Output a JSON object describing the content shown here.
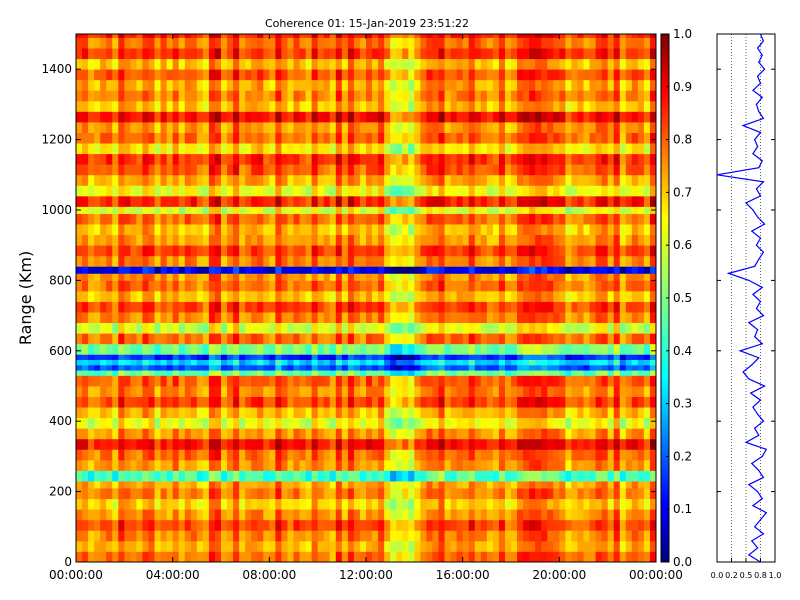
{
  "chart_data": [
    {
      "type": "heatmap",
      "title": "Coherence 01: 15-Jan-2019 23:51:22",
      "xlabel": "",
      "ylabel": "Range (Km)",
      "x_ticks": [
        "00:00:00",
        "04:00:00",
        "08:00:00",
        "12:00:00",
        "16:00:00",
        "20:00:00",
        "00:00:00"
      ],
      "y_ticks": [
        "0",
        "200",
        "400",
        "600",
        "800",
        "1000",
        "1200",
        "1400"
      ],
      "y_tick_values": [
        0,
        200,
        400,
        600,
        800,
        1000,
        1200,
        1400
      ],
      "ylim": [
        0,
        1500
      ],
      "xlim_hours": [
        0,
        24
      ],
      "colormap": "jet",
      "value_range": [
        0.0,
        1.0
      ],
      "row_profile": {
        "range_km": [
          0,
          30,
          60,
          90,
          120,
          150,
          180,
          210,
          230,
          260,
          290,
          320,
          350,
          380,
          410,
          440,
          470,
          500,
          530,
          545,
          560,
          575,
          590,
          620,
          650,
          680,
          710,
          740,
          770,
          800,
          820,
          840,
          870,
          900,
          930,
          960,
          990,
          1010,
          1040,
          1070,
          1100,
          1130,
          1160,
          1190,
          1220,
          1250,
          1280,
          1310,
          1340,
          1370,
          1400,
          1430,
          1460,
          1490
        ],
        "coherence": [
          0.78,
          0.72,
          0.76,
          0.82,
          0.74,
          0.68,
          0.76,
          0.72,
          0.45,
          0.74,
          0.78,
          0.88,
          0.74,
          0.62,
          0.7,
          0.82,
          0.76,
          0.8,
          0.48,
          0.22,
          0.35,
          0.18,
          0.5,
          0.78,
          0.6,
          0.76,
          0.82,
          0.7,
          0.78,
          0.74,
          0.12,
          0.76,
          0.82,
          0.74,
          0.7,
          0.78,
          0.6,
          0.86,
          0.62,
          0.72,
          0.8,
          0.84,
          0.66,
          0.78,
          0.74,
          0.88,
          0.7,
          0.76,
          0.72,
          0.8,
          0.7,
          0.84,
          0.78,
          0.86
        ]
      }
    },
    {
      "type": "colorbar",
      "ticks": [
        "0.0",
        "0.1",
        "0.2",
        "0.3",
        "0.4",
        "0.5",
        "0.6",
        "0.7",
        "0.8",
        "0.9",
        "1.0"
      ],
      "tick_values": [
        0.0,
        0.1,
        0.2,
        0.3,
        0.4,
        0.5,
        0.6,
        0.7,
        0.8,
        0.9,
        1.0
      ],
      "ylim": [
        0,
        1
      ]
    },
    {
      "type": "line",
      "x_ticks": [
        "0.0",
        "0.2",
        "0.5",
        "0.8",
        "1.0"
      ],
      "x_tick_values": [
        0.0,
        0.25,
        0.5,
        0.75,
        1.0
      ],
      "xlim": [
        0,
        1
      ],
      "ylim": [
        0,
        1500
      ],
      "grid": "dotted vertical",
      "color": "#0000ff",
      "series": [
        {
          "range_km": [
            0,
            20,
            40,
            60,
            80,
            100,
            120,
            140,
            160,
            180,
            200,
            220,
            240,
            260,
            280,
            300,
            320,
            340,
            360,
            380,
            400,
            420,
            440,
            460,
            480,
            500,
            520,
            540,
            560,
            580,
            600,
            620,
            640,
            660,
            680,
            700,
            720,
            740,
            760,
            780,
            800,
            820,
            840,
            860,
            880,
            900,
            920,
            940,
            960,
            980,
            1000,
            1020,
            1040,
            1060,
            1080,
            1100,
            1120,
            1140,
            1160,
            1180,
            1200,
            1220,
            1240,
            1260,
            1280,
            1300,
            1320,
            1340,
            1360,
            1380,
            1400,
            1420,
            1440,
            1460,
            1480,
            1500
          ],
          "coherence": [
            0.75,
            0.55,
            0.7,
            0.6,
            0.8,
            0.65,
            0.75,
            0.85,
            0.62,
            0.78,
            0.7,
            0.55,
            0.8,
            0.72,
            0.6,
            0.78,
            0.85,
            0.5,
            0.72,
            0.65,
            0.8,
            0.7,
            0.62,
            0.75,
            0.58,
            0.82,
            0.55,
            0.45,
            0.6,
            0.72,
            0.4,
            0.78,
            0.65,
            0.7,
            0.55,
            0.8,
            0.68,
            0.75,
            0.62,
            0.78,
            0.55,
            0.2,
            0.65,
            0.72,
            0.8,
            0.68,
            0.75,
            0.6,
            0.82,
            0.7,
            0.62,
            0.5,
            0.75,
            0.68,
            0.8,
            0.0,
            0.72,
            0.78,
            0.62,
            0.7,
            0.65,
            0.75,
            0.45,
            0.8,
            0.72,
            0.68,
            0.78,
            0.62,
            0.75,
            0.7,
            0.82,
            0.72,
            0.78,
            0.7,
            0.8,
            0.75
          ]
        }
      ]
    }
  ]
}
